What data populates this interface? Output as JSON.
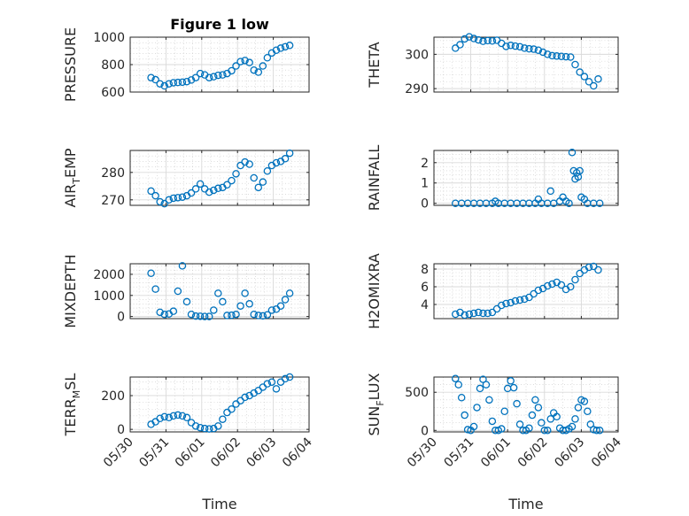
{
  "chart_data": [
    {
      "type": "scatter",
      "title": "Figure 1 low",
      "ylabel": "PRESSURE",
      "xlabel": "",
      "ylim": [
        600,
        1000
      ],
      "yticks": [
        600,
        800,
        1000
      ],
      "marker_color": "#0072BD",
      "x": [
        "05/30 14:00",
        "05/30 17:00",
        "05/30 20:00",
        "05/30 23:00",
        "05/31 02:00",
        "05/31 05:00",
        "05/31 08:00",
        "05/31 11:00",
        "05/31 14:00",
        "05/31 17:00",
        "05/31 20:00",
        "05/31 23:00",
        "06/01 02:00",
        "06/01 05:00",
        "06/01 08:00",
        "06/01 11:00",
        "06/01 14:00",
        "06/01 17:00",
        "06/01 20:00",
        "06/01 23:00",
        "06/02 02:00",
        "06/02 05:00",
        "06/02 08:00",
        "06/02 11:00",
        "06/02 14:00",
        "06/02 17:00",
        "06/02 20:00",
        "06/02 23:00",
        "06/03 02:00",
        "06/03 05:00",
        "06/03 08:00",
        "06/03 11:00"
      ],
      "y": [
        705,
        690,
        660,
        645,
        660,
        668,
        670,
        672,
        676,
        688,
        705,
        735,
        725,
        705,
        712,
        722,
        725,
        735,
        755,
        790,
        822,
        830,
        815,
        760,
        745,
        790,
        850,
        885,
        905,
        920,
        930,
        940
      ]
    },
    {
      "type": "scatter",
      "title": "",
      "ylabel": "THETA",
      "xlabel": "",
      "ylim": [
        289,
        305
      ],
      "yticks": [
        290,
        300
      ],
      "marker_color": "#0072BD",
      "x": [
        "05/30 14:00",
        "05/30 17:00",
        "05/30 20:00",
        "05/30 23:00",
        "05/31 02:00",
        "05/31 05:00",
        "05/31 08:00",
        "05/31 11:00",
        "05/31 14:00",
        "05/31 17:00",
        "05/31 20:00",
        "05/31 23:00",
        "06/01 02:00",
        "06/01 05:00",
        "06/01 08:00",
        "06/01 11:00",
        "06/01 14:00",
        "06/01 17:00",
        "06/01 20:00",
        "06/01 23:00",
        "06/02 02:00",
        "06/02 05:00",
        "06/02 08:00",
        "06/02 11:00",
        "06/02 14:00",
        "06/02 17:00",
        "06/02 20:00",
        "06/02 23:00",
        "06/03 02:00",
        "06/03 05:00",
        "06/03 08:00",
        "06/03 11:00"
      ],
      "y": [
        301.8,
        302.8,
        304.5,
        305.1,
        304.6,
        304.2,
        303.8,
        304,
        303.9,
        304.1,
        303.2,
        302.3,
        302.6,
        302.4,
        302.2,
        301.8,
        301.6,
        301.5,
        301.2,
        300.6,
        300,
        299.6,
        299.5,
        299.4,
        299.3,
        299.2,
        297,
        294.8,
        293.5,
        292,
        290.8,
        292.8
      ]
    },
    {
      "type": "scatter",
      "title": "",
      "ylabel": "AIR_TEMP",
      "xlabel": "",
      "ylim": [
        268,
        288
      ],
      "yticks": [
        270,
        280
      ],
      "marker_color": "#0072BD",
      "x": [
        "05/30 14:00",
        "05/30 17:00",
        "05/30 20:00",
        "05/30 23:00",
        "05/31 02:00",
        "05/31 05:00",
        "05/31 08:00",
        "05/31 11:00",
        "05/31 14:00",
        "05/31 17:00",
        "05/31 20:00",
        "05/31 23:00",
        "06/01 02:00",
        "06/01 05:00",
        "06/01 08:00",
        "06/01 11:00",
        "06/01 14:00",
        "06/01 17:00",
        "06/01 20:00",
        "06/01 23:00",
        "06/02 02:00",
        "06/02 05:00",
        "06/02 08:00",
        "06/02 11:00",
        "06/02 14:00",
        "06/02 17:00",
        "06/02 20:00",
        "06/02 23:00",
        "06/03 02:00",
        "06/03 05:00",
        "06/03 08:00",
        "06/03 11:00"
      ],
      "y": [
        273.2,
        271.5,
        269.3,
        268.6,
        270,
        270.6,
        270.8,
        271,
        271.5,
        272.5,
        274,
        275.8,
        274,
        272.8,
        273.5,
        274.2,
        274.5,
        275.5,
        277,
        279.5,
        282.5,
        283.8,
        283,
        278,
        274.5,
        276.5,
        280.5,
        282.5,
        283.5,
        284,
        285,
        287
      ]
    },
    {
      "type": "scatter",
      "title": "",
      "ylabel": "RAINFALL",
      "xlabel": "",
      "ylim": [
        -0.1,
        2.6
      ],
      "yticks": [
        0,
        1,
        2
      ],
      "marker_color": "#0072BD",
      "x": [
        "05/30 14:00",
        "05/30 18:00",
        "05/30 22:00",
        "05/31 02:00",
        "05/31 06:00",
        "05/31 10:00",
        "05/31 14:00",
        "05/31 16:00",
        "05/31 18:00",
        "05/31 22:00",
        "06/01 02:00",
        "06/01 06:00",
        "06/01 10:00",
        "06/01 14:00",
        "06/01 18:00",
        "06/01 20:00",
        "06/01 22:00",
        "06/02 02:00",
        "06/02 04:00",
        "06/02 06:00",
        "06/02 10:00",
        "06/02 12:00",
        "06/02 14:00",
        "06/02 16:00",
        "06/02 18:00",
        "06/02 19:00",
        "06/02 20:00",
        "06/02 21:00",
        "06/02 22:00",
        "06/02 23:00",
        "06/03 00:00",
        "06/03 02:00",
        "06/03 04:00",
        "06/03 08:00",
        "06/03 12:00"
      ],
      "y": [
        0,
        0,
        0,
        0,
        0,
        0,
        0,
        0.1,
        0,
        0,
        0,
        0,
        0,
        0,
        0,
        0.2,
        0,
        0,
        0.6,
        0,
        0.1,
        0.3,
        0.1,
        0,
        2.5,
        1.6,
        1.2,
        1.5,
        1.3,
        1.6,
        0.3,
        0.2,
        0,
        0,
        0
      ]
    },
    {
      "type": "scatter",
      "title": "",
      "ylabel": "MIXDEPTH",
      "xlabel": "",
      "ylim": [
        -100,
        2500
      ],
      "yticks": [
        0,
        1000,
        2000
      ],
      "marker_color": "#0072BD",
      "x": [
        "05/30 14:00",
        "05/30 17:00",
        "05/30 20:00",
        "05/30 23:00",
        "05/31 02:00",
        "05/31 05:00",
        "05/31 08:00",
        "05/31 11:00",
        "05/31 14:00",
        "05/31 17:00",
        "05/31 20:00",
        "05/31 23:00",
        "06/01 02:00",
        "06/01 05:00",
        "06/01 08:00",
        "06/01 11:00",
        "06/01 14:00",
        "06/01 17:00",
        "06/01 20:00",
        "06/01 23:00",
        "06/02 02:00",
        "06/02 05:00",
        "06/02 08:00",
        "06/02 11:00",
        "06/02 14:00",
        "06/02 17:00",
        "06/02 20:00",
        "06/02 23:00",
        "06/03 02:00",
        "06/03 05:00",
        "06/03 08:00",
        "06/03 11:00"
      ],
      "y": [
        2050,
        1300,
        200,
        100,
        120,
        250,
        1200,
        2400,
        700,
        100,
        20,
        10,
        0,
        0,
        300,
        1100,
        700,
        50,
        60,
        100,
        500,
        1100,
        600,
        100,
        50,
        30,
        80,
        300,
        350,
        500,
        800,
        1100
      ]
    },
    {
      "type": "scatter",
      "title": "",
      "ylabel": "H2OMIXRA",
      "xlabel": "",
      "ylim": [
        2.4,
        8.6
      ],
      "yticks": [
        4,
        6,
        8
      ],
      "marker_color": "#0072BD",
      "x": [
        "05/30 14:00",
        "05/30 17:00",
        "05/30 20:00",
        "05/30 23:00",
        "05/31 02:00",
        "05/31 05:00",
        "05/31 08:00",
        "05/31 11:00",
        "05/31 14:00",
        "05/31 17:00",
        "05/31 20:00",
        "05/31 23:00",
        "06/01 02:00",
        "06/01 05:00",
        "06/01 08:00",
        "06/01 11:00",
        "06/01 14:00",
        "06/01 17:00",
        "06/01 20:00",
        "06/01 23:00",
        "06/02 02:00",
        "06/02 05:00",
        "06/02 08:00",
        "06/02 11:00",
        "06/02 14:00",
        "06/02 17:00",
        "06/02 20:00",
        "06/02 23:00",
        "06/03 02:00",
        "06/03 05:00",
        "06/03 08:00",
        "06/03 11:00"
      ],
      "y": [
        2.9,
        3.1,
        2.8,
        2.9,
        3,
        3.1,
        3,
        3,
        3.1,
        3.5,
        3.9,
        4.1,
        4.2,
        4.4,
        4.5,
        4.6,
        4.8,
        5.2,
        5.6,
        5.8,
        6.1,
        6.3,
        6.5,
        6.2,
        5.7,
        6,
        6.8,
        7.5,
        7.9,
        8.2,
        8.3,
        7.9
      ]
    },
    {
      "type": "scatter",
      "title": "",
      "ylabel": "TERR_MSL",
      "xlabel": "Time",
      "ylim": [
        -15,
        310
      ],
      "yticks": [
        0,
        200
      ],
      "xticks": [
        "05/30",
        "05/31",
        "06/01",
        "06/02",
        "06/03",
        "06/04"
      ],
      "marker_color": "#0072BD",
      "x": [
        "05/30 14:00",
        "05/30 17:00",
        "05/30 20:00",
        "05/30 23:00",
        "05/31 02:00",
        "05/31 05:00",
        "05/31 08:00",
        "05/31 11:00",
        "05/31 14:00",
        "05/31 17:00",
        "05/31 20:00",
        "05/31 23:00",
        "06/01 02:00",
        "06/01 05:00",
        "06/01 08:00",
        "06/01 11:00",
        "06/01 14:00",
        "06/01 17:00",
        "06/01 20:00",
        "06/01 23:00",
        "06/02 02:00",
        "06/02 05:00",
        "06/02 08:00",
        "06/02 11:00",
        "06/02 14:00",
        "06/02 17:00",
        "06/02 20:00",
        "06/02 23:00",
        "06/03 02:00",
        "06/03 05:00",
        "06/03 08:00",
        "06/03 11:00"
      ],
      "y": [
        30,
        45,
        65,
        75,
        70,
        80,
        85,
        80,
        70,
        40,
        20,
        10,
        5,
        3,
        5,
        20,
        60,
        100,
        120,
        150,
        170,
        190,
        200,
        215,
        230,
        250,
        270,
        280,
        240,
        280,
        300,
        310
      ]
    },
    {
      "type": "scatter",
      "title": "",
      "ylabel": "SUN_FLUX",
      "xlabel": "Time",
      "ylim": [
        -20,
        700
      ],
      "yticks": [
        0,
        500
      ],
      "xticks": [
        "05/30",
        "05/31",
        "06/01",
        "06/02",
        "06/03",
        "06/04"
      ],
      "marker_color": "#0072BD",
      "x": [
        "05/30 14:00",
        "05/30 16:00",
        "05/30 18:00",
        "05/30 20:00",
        "05/30 22:00",
        "05/31 00:00",
        "05/31 02:00",
        "05/31 04:00",
        "05/31 06:00",
        "05/31 08:00",
        "05/31 10:00",
        "05/31 12:00",
        "05/31 14:00",
        "05/31 16:00",
        "05/31 18:00",
        "05/31 20:00",
        "05/31 22:00",
        "06/01 00:00",
        "06/01 02:00",
        "06/01 04:00",
        "06/01 06:00",
        "06/01 08:00",
        "06/01 10:00",
        "06/01 12:00",
        "06/01 14:00",
        "06/01 16:00",
        "06/01 18:00",
        "06/01 20:00",
        "06/01 22:00",
        "06/02 00:00",
        "06/02 02:00",
        "06/02 04:00",
        "06/02 06:00",
        "06/02 08:00",
        "06/02 10:00",
        "06/02 12:00",
        "06/02 14:00",
        "06/02 16:00",
        "06/02 18:00",
        "06/02 20:00",
        "06/02 22:00",
        "06/03 00:00",
        "06/03 02:00",
        "06/03 04:00",
        "06/03 06:00",
        "06/03 08:00",
        "06/03 10:00",
        "06/03 12:00"
      ],
      "y": [
        680,
        600,
        430,
        200,
        10,
        0,
        50,
        300,
        550,
        670,
        600,
        400,
        120,
        0,
        0,
        20,
        250,
        550,
        650,
        560,
        350,
        80,
        0,
        0,
        30,
        200,
        400,
        300,
        100,
        0,
        0,
        150,
        230,
        180,
        30,
        0,
        0,
        20,
        50,
        150,
        300,
        400,
        380,
        250,
        80,
        10,
        0,
        0
      ]
    }
  ]
}
